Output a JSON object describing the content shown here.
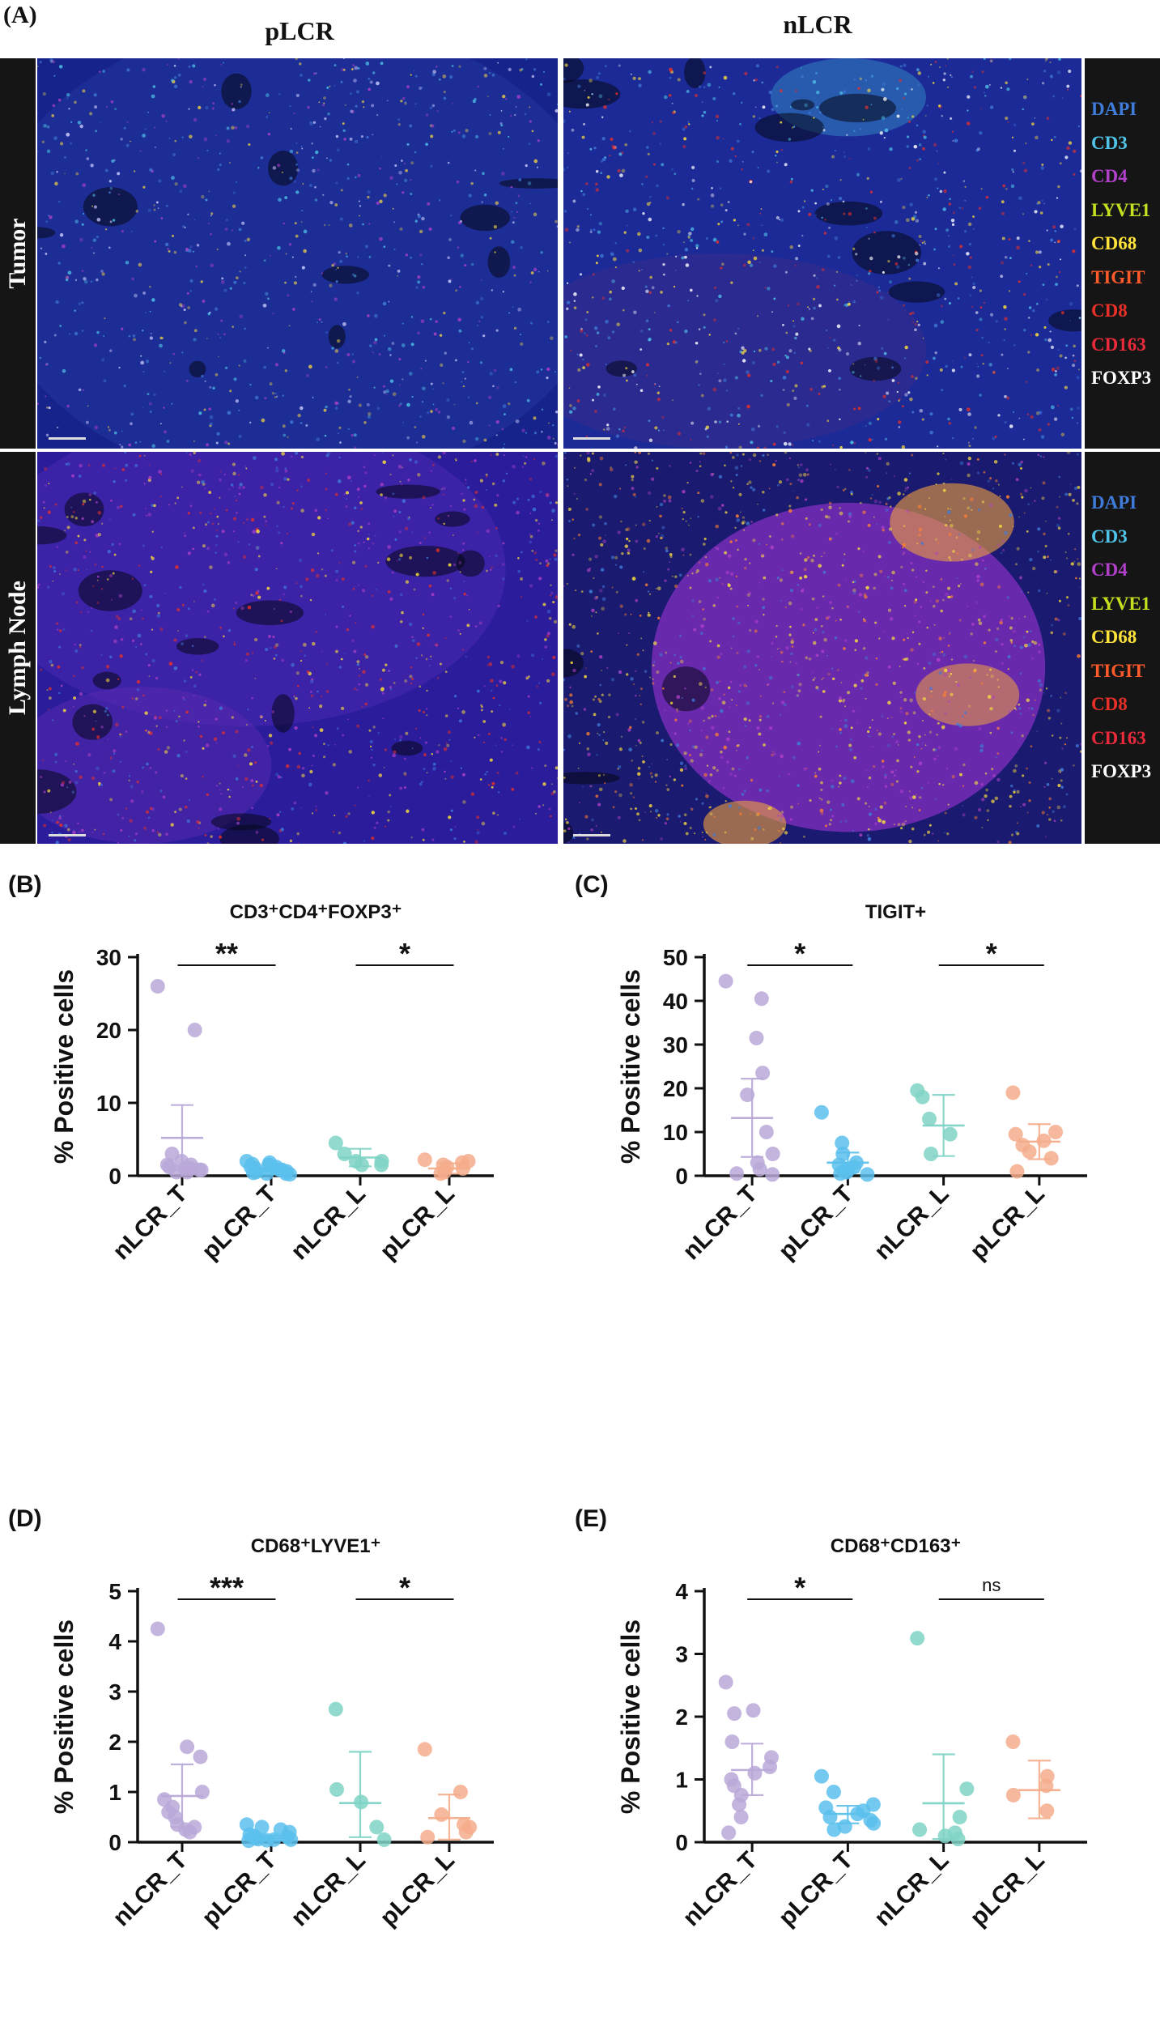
{
  "panel_a": {
    "letter": "(A)",
    "columns": [
      "pLCR",
      "nLCR"
    ],
    "rows": [
      "Tumor",
      "Lymph Node"
    ],
    "markers": [
      {
        "label": "DAPI",
        "color": "#3f7bd8"
      },
      {
        "label": "CD3",
        "color": "#4fc3e8"
      },
      {
        "label": "CD4",
        "color": "#b040c8"
      },
      {
        "label": "LYVE1",
        "color": "#c6e020"
      },
      {
        "label": "CD68",
        "color": "#ffe23a"
      },
      {
        "label": "TIGIT",
        "color": "#ff5a2a"
      },
      {
        "label": "CD8",
        "color": "#e83028"
      },
      {
        "label": "CD163",
        "color": "#e82a3a"
      },
      {
        "label": "FOXP3",
        "color": "#ffffff"
      }
    ]
  },
  "chart_data": [
    {
      "type": "scatter",
      "panel": "(B)",
      "title": "CD3⁺CD4⁺FOXP3⁺",
      "ylabel": "% Positive cells",
      "categories": [
        "nLCR_T",
        "pLCR_T",
        "nLCR_L",
        "pLCR_L"
      ],
      "colors": [
        "#b9a8d8",
        "#5ac0ec",
        "#7fd3c6",
        "#f5ad8c"
      ],
      "ylim": [
        0,
        30
      ],
      "yticks": [
        0,
        10,
        20,
        30
      ],
      "series": [
        {
          "points": [
            26,
            20,
            3,
            2,
            1.5,
            1.2,
            1,
            0.8,
            0.8,
            1,
            1.5,
            0.5,
            0.5
          ],
          "mean": 5.2,
          "err_low": 0.8,
          "err_high": 9.7
        },
        {
          "points": [
            2,
            1.8,
            1.6,
            1.5,
            1.2,
            1.2,
            1.0,
            0.8,
            0.8,
            0.6,
            0.5,
            0.4,
            0.3,
            0.3,
            0.2
          ],
          "mean": 0.6,
          "err_low": 0.2,
          "err_high": 1.0
        },
        {
          "points": [
            4.5,
            3,
            2,
            2,
            1.5,
            1.5
          ],
          "mean": 2.5,
          "err_low": 1.3,
          "err_high": 3.7
        },
        {
          "points": [
            2.2,
            2,
            1.8,
            1.5,
            1.2,
            1,
            0.5,
            0.3
          ],
          "mean": 1.0,
          "err_low": 0.3,
          "err_high": 1.7
        }
      ],
      "significance": [
        {
          "from": 0,
          "to": 1,
          "label": "**"
        },
        {
          "from": 2,
          "to": 3,
          "label": "*"
        }
      ]
    },
    {
      "type": "scatter",
      "panel": "(C)",
      "title": "TIGIT+",
      "ylabel": "% Positive cells",
      "categories": [
        "nLCR_T",
        "pLCR_T",
        "nLCR_L",
        "pLCR_L"
      ],
      "colors": [
        "#b9a8d8",
        "#5ac0ec",
        "#7fd3c6",
        "#f5ad8c"
      ],
      "ylim": [
        0,
        50
      ],
      "yticks": [
        0,
        10,
        20,
        30,
        40,
        50
      ],
      "series": [
        {
          "points": [
            44.5,
            40.5,
            31.5,
            23.5,
            18.5,
            10,
            5,
            3,
            1.5,
            0.5,
            0.3
          ],
          "mean": 13.2,
          "err_low": 4.3,
          "err_high": 22.2
        },
        {
          "points": [
            14.5,
            7.5,
            5,
            3,
            2.5,
            2,
            1.5,
            1,
            0.8,
            0.5,
            0.3
          ],
          "mean": 3.0,
          "err_low": 0.8,
          "err_high": 5.3
        },
        {
          "points": [
            19.5,
            18,
            13,
            9.5,
            5
          ],
          "mean": 11.5,
          "err_low": 4.5,
          "err_high": 18.5
        },
        {
          "points": [
            19,
            10,
            9.5,
            8,
            7,
            5.5,
            4,
            1
          ],
          "mean": 7.8,
          "err_low": 3.8,
          "err_high": 11.8
        }
      ],
      "significance": [
        {
          "from": 0,
          "to": 1,
          "label": "*"
        },
        {
          "from": 2,
          "to": 3,
          "label": "*"
        }
      ]
    },
    {
      "type": "scatter",
      "panel": "(D)",
      "title": "CD68⁺LYVE1⁺",
      "ylabel": "% Positive cells",
      "categories": [
        "nLCR_T",
        "pLCR_T",
        "nLCR_L",
        "pLCR_L"
      ],
      "colors": [
        "#b9a8d8",
        "#5ac0ec",
        "#7fd3c6",
        "#f5ad8c"
      ],
      "ylim": [
        0,
        5
      ],
      "yticks": [
        0,
        1,
        2,
        3,
        4,
        5
      ],
      "series": [
        {
          "points": [
            4.25,
            1.9,
            1.7,
            1.0,
            0.85,
            0.7,
            0.6,
            0.5,
            0.35,
            0.3,
            0.25,
            0.2
          ],
          "mean": 0.92,
          "err_low": 0.3,
          "err_high": 1.55
        },
        {
          "points": [
            0.35,
            0.3,
            0.25,
            0.2,
            0.15,
            0.12,
            0.1,
            0.08,
            0.06,
            0.05,
            0.05,
            0.04,
            0.03
          ],
          "mean": 0.08,
          "err_low": 0.03,
          "err_high": 0.13
        },
        {
          "points": [
            2.65,
            1.05,
            0.8,
            0.3,
            0.05
          ],
          "mean": 0.78,
          "err_low": 0.1,
          "err_high": 1.8
        },
        {
          "points": [
            1.85,
            1.0,
            0.55,
            0.35,
            0.3,
            0.2,
            0.1
          ],
          "mean": 0.48,
          "err_low": 0.05,
          "err_high": 0.95
        }
      ],
      "significance": [
        {
          "from": 0,
          "to": 1,
          "label": "***"
        },
        {
          "from": 2,
          "to": 3,
          "label": "*"
        }
      ]
    },
    {
      "type": "scatter",
      "panel": "(E)",
      "title": "CD68⁺CD163⁺",
      "ylabel": "% Positive cells",
      "categories": [
        "nLCR_T",
        "pLCR_T",
        "nLCR_L",
        "pLCR_L"
      ],
      "colors": [
        "#b9a8d8",
        "#5ac0ec",
        "#7fd3c6",
        "#f5ad8c"
      ],
      "ylim": [
        0,
        4
      ],
      "yticks": [
        0,
        1,
        2,
        3,
        4
      ],
      "series": [
        {
          "points": [
            2.55,
            2.1,
            2.05,
            1.6,
            1.35,
            1.2,
            1.1,
            1.0,
            0.9,
            0.75,
            0.6,
            0.4,
            0.15
          ],
          "mean": 1.15,
          "err_low": 0.75,
          "err_high": 1.57
        },
        {
          "points": [
            1.05,
            0.8,
            0.6,
            0.55,
            0.5,
            0.45,
            0.4,
            0.35,
            0.3,
            0.25,
            0.2
          ],
          "mean": 0.45,
          "err_low": 0.3,
          "err_high": 0.58
        },
        {
          "points": [
            3.25,
            0.85,
            0.4,
            0.2,
            0.15,
            0.1,
            0.05
          ],
          "mean": 0.62,
          "err_low": 0.05,
          "err_high": 1.4
        },
        {
          "points": [
            1.6,
            1.05,
            0.9,
            0.75,
            0.5
          ],
          "mean": 0.83,
          "err_low": 0.38,
          "err_high": 1.3
        }
      ],
      "significance": [
        {
          "from": 0,
          "to": 1,
          "label": "*"
        },
        {
          "from": 2,
          "to": 3,
          "label": "ns"
        }
      ]
    }
  ]
}
